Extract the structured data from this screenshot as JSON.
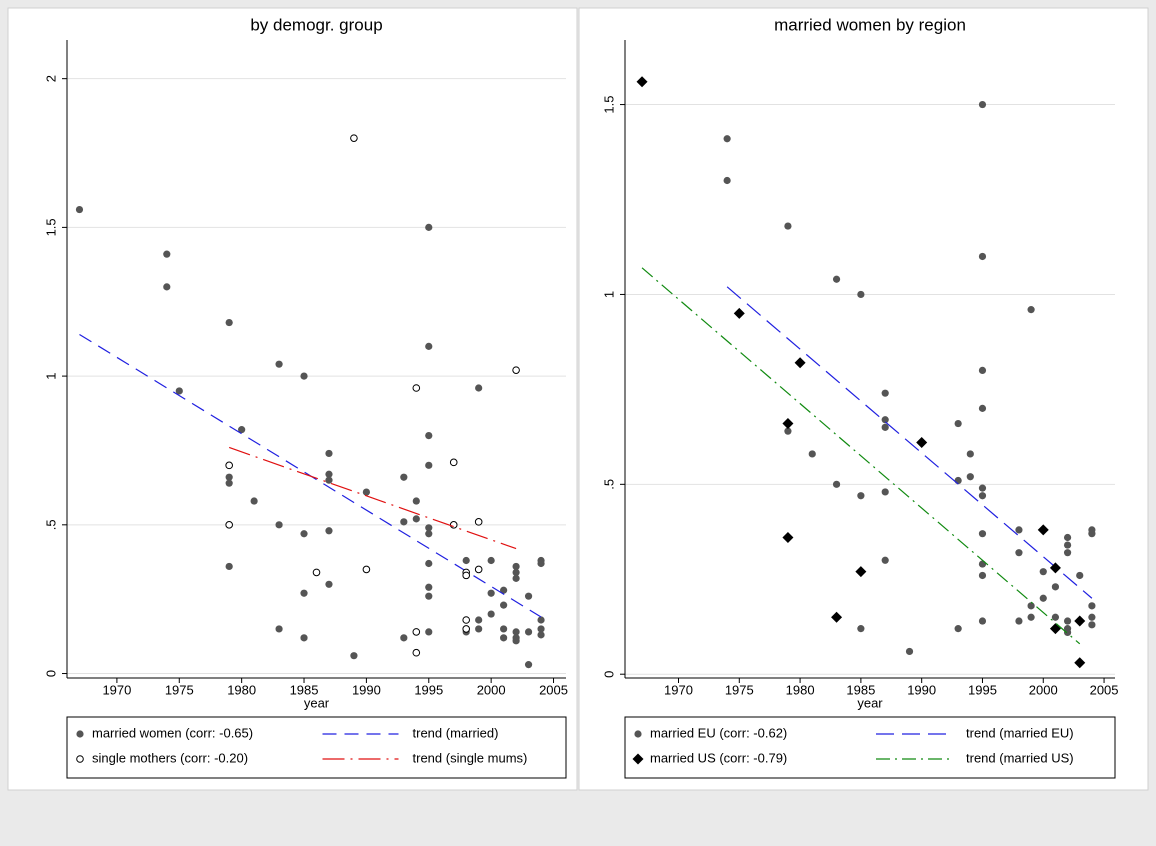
{
  "chart_data": [
    {
      "type": "scatter",
      "title": "by demogr. group",
      "xlabel": "year",
      "xlim": [
        1966,
        2006
      ],
      "ylim": [
        -0.015,
        2.13
      ],
      "xticks": [
        1970,
        1975,
        1980,
        1985,
        1990,
        1995,
        2000,
        2005
      ],
      "yticks": [
        0,
        {
          "value": 0.5,
          "label": ".5"
        },
        1,
        1.5,
        2
      ],
      "grid": true,
      "series": [
        {
          "name": "married women (corr: -0.65)",
          "kind": "points",
          "marker": "circle",
          "color": "#555555",
          "x": [
            1967,
            1974,
            1974,
            1975,
            1979,
            1979,
            1979,
            1979,
            1980,
            1981,
            1983,
            1983,
            1983,
            1985,
            1985,
            1985,
            1985,
            1987,
            1987,
            1987,
            1987,
            1987,
            1989,
            1990,
            1993,
            1993,
            1993,
            1994,
            1994,
            1995,
            1995,
            1995,
            1995,
            1995,
            1995,
            1995,
            1995,
            1995,
            1995,
            1998,
            1998,
            1998,
            1998,
            1999,
            1999,
            1999,
            2000,
            2000,
            2000,
            2001,
            2001,
            2001,
            2001,
            2002,
            2002,
            2002,
            2002,
            2002,
            2002,
            2003,
            2003,
            2003,
            2004,
            2004,
            2004,
            2004,
            2004
          ],
          "values": [
            1.56,
            1.41,
            1.3,
            0.95,
            1.18,
            0.66,
            0.64,
            0.36,
            0.82,
            0.58,
            1.04,
            0.5,
            0.15,
            1.0,
            0.47,
            0.27,
            0.12,
            0.74,
            0.67,
            0.65,
            0.48,
            0.3,
            0.06,
            0.61,
            0.66,
            0.51,
            0.12,
            0.58,
            0.52,
            1.5,
            1.1,
            0.8,
            0.7,
            0.49,
            0.47,
            0.37,
            0.29,
            0.26,
            0.14,
            0.38,
            0.33,
            0.15,
            0.14,
            0.96,
            0.18,
            0.15,
            0.38,
            0.27,
            0.2,
            0.28,
            0.23,
            0.15,
            0.12,
            0.36,
            0.34,
            0.32,
            0.14,
            0.12,
            0.11,
            0.26,
            0.14,
            0.03,
            0.38,
            0.37,
            0.18,
            0.15,
            0.13
          ]
        },
        {
          "name": "trend (married)",
          "kind": "line",
          "dash": "14 8",
          "color": "#2020e0",
          "x": [
            1967,
            2004
          ],
          "values": [
            1.14,
            0.19
          ]
        },
        {
          "name": "single mothers (corr: -0.20)",
          "kind": "points",
          "marker": "hollow-circle",
          "color": "#000000",
          "x": [
            1979,
            1979,
            1986,
            1989,
            1990,
            1994,
            1994,
            1994,
            1997,
            1997,
            1998,
            1998,
            1998,
            1998,
            1999,
            1999,
            2002
          ],
          "values": [
            0.7,
            0.5,
            0.34,
            1.8,
            0.35,
            0.96,
            0.14,
            0.07,
            0.71,
            0.5,
            0.34,
            0.33,
            0.18,
            0.15,
            0.51,
            0.35,
            1.02
          ]
        },
        {
          "name": "trend (single mums)",
          "kind": "line",
          "dash": "22 6 2 6",
          "color": "#e01010",
          "x": [
            1979,
            2002
          ],
          "values": [
            0.76,
            0.42
          ]
        }
      ]
    },
    {
      "type": "scatter",
      "title": "married women by region",
      "xlabel": "year",
      "xlim": [
        1965.6,
        2005.9
      ],
      "ylim": [
        -0.01,
        1.67
      ],
      "xticks": [
        1970,
        1975,
        1980,
        1985,
        1990,
        1995,
        2000,
        2005
      ],
      "yticks": [
        0,
        {
          "value": 0.5,
          "label": ".5"
        },
        1,
        1.5
      ],
      "grid": true,
      "series": [
        {
          "name": "married EU (corr: -0.62)",
          "kind": "points",
          "marker": "circle",
          "color": "#555555",
          "x": [
            1974,
            1974,
            1979,
            1979,
            1981,
            1983,
            1983,
            1985,
            1985,
            1985,
            1987,
            1987,
            1987,
            1987,
            1987,
            1989,
            1993,
            1993,
            1993,
            1994,
            1994,
            1995,
            1995,
            1995,
            1995,
            1995,
            1995,
            1995,
            1995,
            1995,
            1995,
            1998,
            1998,
            1998,
            1999,
            1999,
            1999,
            2000,
            2000,
            2001,
            2001,
            2002,
            2002,
            2002,
            2002,
            2002,
            2002,
            2003,
            2004,
            2004,
            2004,
            2004,
            2004
          ],
          "values": [
            1.41,
            1.3,
            1.18,
            0.64,
            0.58,
            1.04,
            0.5,
            1.0,
            0.47,
            0.12,
            0.74,
            0.67,
            0.65,
            0.48,
            0.3,
            0.06,
            0.66,
            0.51,
            0.12,
            0.58,
            0.52,
            1.5,
            1.1,
            0.8,
            0.7,
            0.49,
            0.47,
            0.37,
            0.29,
            0.26,
            0.14,
            0.38,
            0.32,
            0.14,
            0.96,
            0.18,
            0.15,
            0.27,
            0.2,
            0.23,
            0.15,
            0.36,
            0.34,
            0.32,
            0.14,
            0.12,
            0.11,
            0.26,
            0.38,
            0.37,
            0.18,
            0.15,
            0.13
          ]
        },
        {
          "name": "trend (married EU)",
          "kind": "line",
          "dash": "18 8",
          "color": "#2020e0",
          "x": [
            1974,
            2004
          ],
          "values": [
            1.02,
            0.2
          ]
        },
        {
          "name": "married US (corr: -0.79)",
          "kind": "points",
          "marker": "diamond",
          "color": "#000000",
          "x": [
            1967,
            1975,
            1979,
            1979,
            1980,
            1983,
            1985,
            1990,
            2000,
            2001,
            2001,
            2003,
            2003
          ],
          "values": [
            1.56,
            0.95,
            0.66,
            0.36,
            0.82,
            0.15,
            0.27,
            0.61,
            0.38,
            0.28,
            0.12,
            0.14,
            0.03
          ]
        },
        {
          "name": "trend (married US)",
          "kind": "line",
          "dash": "14 5 2 5",
          "color": "#108a10",
          "x": [
            1967,
            2003
          ],
          "values": [
            1.07,
            0.08
          ]
        }
      ]
    }
  ]
}
